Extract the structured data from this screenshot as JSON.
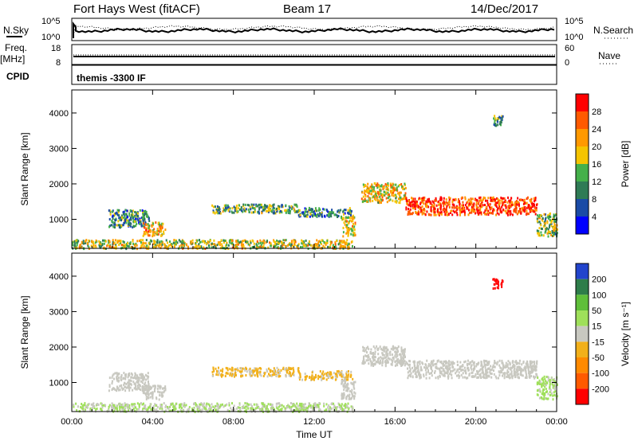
{
  "header": {
    "title": "Fort Hays West (fitACF)",
    "beam": "Beam 17",
    "date": "14/Dec/2017"
  },
  "strip": {
    "nsky_label": "N.Sky",
    "nsearch_label": "N.Search",
    "freq_label": "Freq.",
    "freq_unit": "[MHz]",
    "nave_label": "Nave",
    "cpid_label": "CPID",
    "cpid_value": "themis -3300 IF",
    "noise_ticks": [
      "10^5",
      "10^0"
    ],
    "freq_ticks": [
      "18",
      "8"
    ],
    "nave_ticks": [
      "60",
      "0"
    ]
  },
  "colors": {
    "power_scale": [
      "#0000ff",
      "#1a4ba6",
      "#2f7b55",
      "#44b04a",
      "#f5c400",
      "#ff9900",
      "#ff5a00",
      "#ff0000"
    ],
    "velocity_scale": [
      "#2244cc",
      "#2e7d4a",
      "#5fbf3a",
      "#9fe05a",
      "#c8c8c0",
      "#f2b01a",
      "#ff8a00",
      "#ff5a00",
      "#ff0000"
    ]
  },
  "chart_data": [
    {
      "type": "heatmap",
      "title": "",
      "xlabel": "",
      "ylabel": "Slant Range [km]",
      "x_ticks": [
        "00:00",
        "04:00",
        "08:00",
        "12:00",
        "16:00",
        "20:00",
        "00:00"
      ],
      "y_ticks": [
        1000,
        2000,
        3000,
        4000
      ],
      "xlim_hours": [
        0,
        24
      ],
      "ylim_km": [
        180,
        4650
      ],
      "colorbar": {
        "label": "Power [dB]",
        "ticks": [
          4,
          8,
          12,
          16,
          20,
          24,
          28
        ],
        "range": [
          0,
          30
        ]
      },
      "echo_regions": [
        {
          "t0": 0.0,
          "t1": 13.9,
          "r0": 200,
          "r1": 450,
          "value": 16
        },
        {
          "t0": 1.8,
          "t1": 3.8,
          "r0": 800,
          "r1": 1300,
          "value": 10
        },
        {
          "t0": 3.5,
          "t1": 4.6,
          "r0": 550,
          "r1": 950,
          "value": 20
        },
        {
          "t0": 6.9,
          "t1": 11.2,
          "r0": 1200,
          "r1": 1450,
          "value": 12
        },
        {
          "t0": 11.2,
          "t1": 13.9,
          "r0": 1100,
          "r1": 1350,
          "value": 10
        },
        {
          "t0": 13.3,
          "t1": 14.0,
          "r0": 550,
          "r1": 1100,
          "value": 18
        },
        {
          "t0": 14.3,
          "t1": 16.5,
          "r0": 1500,
          "r1": 2050,
          "value": 18
        },
        {
          "t0": 16.5,
          "t1": 23.0,
          "r0": 1150,
          "r1": 1650,
          "value": 26
        },
        {
          "t0": 23.0,
          "t1": 24.0,
          "r0": 550,
          "r1": 1200,
          "value": 14
        },
        {
          "t0": 20.8,
          "t1": 21.3,
          "r0": 3650,
          "r1": 3950,
          "value": 12
        }
      ]
    },
    {
      "type": "heatmap",
      "title": "",
      "xlabel": "Time UT",
      "ylabel": "Slant Range [km]",
      "x_ticks": [
        "00:00",
        "04:00",
        "08:00",
        "12:00",
        "16:00",
        "20:00",
        "00:00"
      ],
      "y_ticks": [
        1000,
        2000,
        3000,
        4000
      ],
      "xlim_hours": [
        0,
        24
      ],
      "ylim_km": [
        180,
        4650
      ],
      "colorbar": {
        "label": "Velocity [m s⁻¹]",
        "ticks": [
          200,
          100,
          50,
          15,
          -15,
          -50,
          -100,
          -200
        ],
        "range": [
          -250,
          250
        ]
      },
      "echo_regions": [
        {
          "t0": 0.0,
          "t1": 13.9,
          "r0": 200,
          "r1": 450,
          "value": 30
        },
        {
          "t0": 1.8,
          "t1": 3.8,
          "r0": 800,
          "r1": 1300,
          "value": 0
        },
        {
          "t0": 3.5,
          "t1": 4.6,
          "r0": 550,
          "r1": 950,
          "value": 0
        },
        {
          "t0": 6.9,
          "t1": 11.2,
          "r0": 1200,
          "r1": 1450,
          "value": -40
        },
        {
          "t0": 11.2,
          "t1": 13.9,
          "r0": 1100,
          "r1": 1350,
          "value": -40
        },
        {
          "t0": 13.3,
          "t1": 14.0,
          "r0": 550,
          "r1": 1100,
          "value": 0
        },
        {
          "t0": 14.3,
          "t1": 16.5,
          "r0": 1500,
          "r1": 2050,
          "value": 0
        },
        {
          "t0": 16.5,
          "t1": 23.0,
          "r0": 1150,
          "r1": 1650,
          "value": 0
        },
        {
          "t0": 23.0,
          "t1": 24.0,
          "r0": 550,
          "r1": 1200,
          "value": 40
        },
        {
          "t0": 20.8,
          "t1": 21.3,
          "r0": 3650,
          "r1": 3950,
          "value": -220
        }
      ]
    }
  ]
}
